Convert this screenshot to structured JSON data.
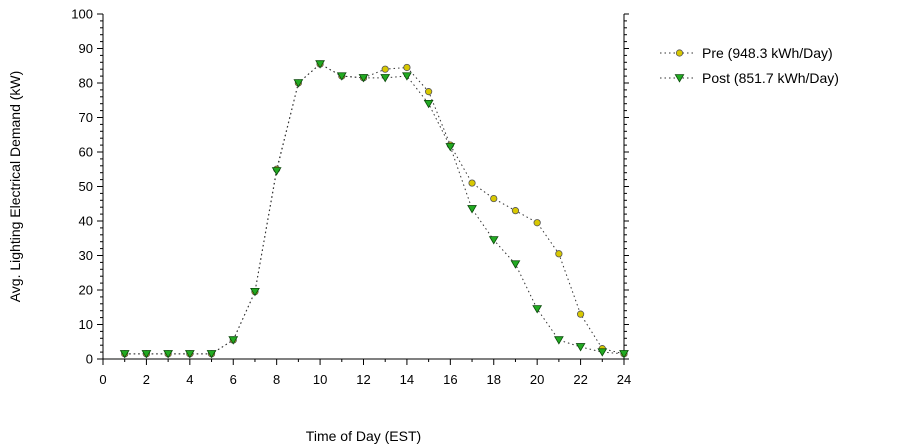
{
  "chart_data": {
    "type": "line",
    "title": "",
    "xlabel": "Time of Day (EST)",
    "ylabel": "Avg. Lighting Electrical Demand (kW)",
    "xlim": [
      0,
      24
    ],
    "ylim": [
      0,
      100
    ],
    "xticks": [
      0,
      2,
      4,
      6,
      8,
      10,
      12,
      14,
      16,
      18,
      20,
      22,
      24
    ],
    "yticks": [
      0,
      10,
      20,
      30,
      40,
      50,
      60,
      70,
      80,
      90,
      100
    ],
    "grid": false,
    "legend_position": "right",
    "x": [
      1,
      2,
      3,
      4,
      5,
      6,
      7,
      8,
      9,
      10,
      11,
      12,
      13,
      14,
      15,
      16,
      17,
      18,
      19,
      20,
      21,
      22,
      23,
      24
    ],
    "series": [
      {
        "name": "Pre (948.3 kWh/Day)",
        "marker": "circle",
        "color": "#d8c800",
        "values": [
          1.5,
          1.5,
          1.5,
          1.5,
          1.5,
          5.5,
          19.5,
          55,
          80,
          85.5,
          82,
          81.5,
          84,
          84.5,
          77.5,
          62,
          51,
          46.5,
          43,
          39.5,
          30.5,
          13,
          3,
          1.5
        ]
      },
      {
        "name": "Post (851.7 kWh/Day)",
        "marker": "triangle-down",
        "color": "#22aa22",
        "values": [
          1.5,
          1.5,
          1.5,
          1.5,
          1.5,
          5.5,
          19.5,
          54.5,
          80,
          85.5,
          82,
          81.5,
          81.5,
          82,
          74,
          61.5,
          43.5,
          34.5,
          27.5,
          14.5,
          5.5,
          3.5,
          2,
          1.5
        ]
      }
    ]
  }
}
